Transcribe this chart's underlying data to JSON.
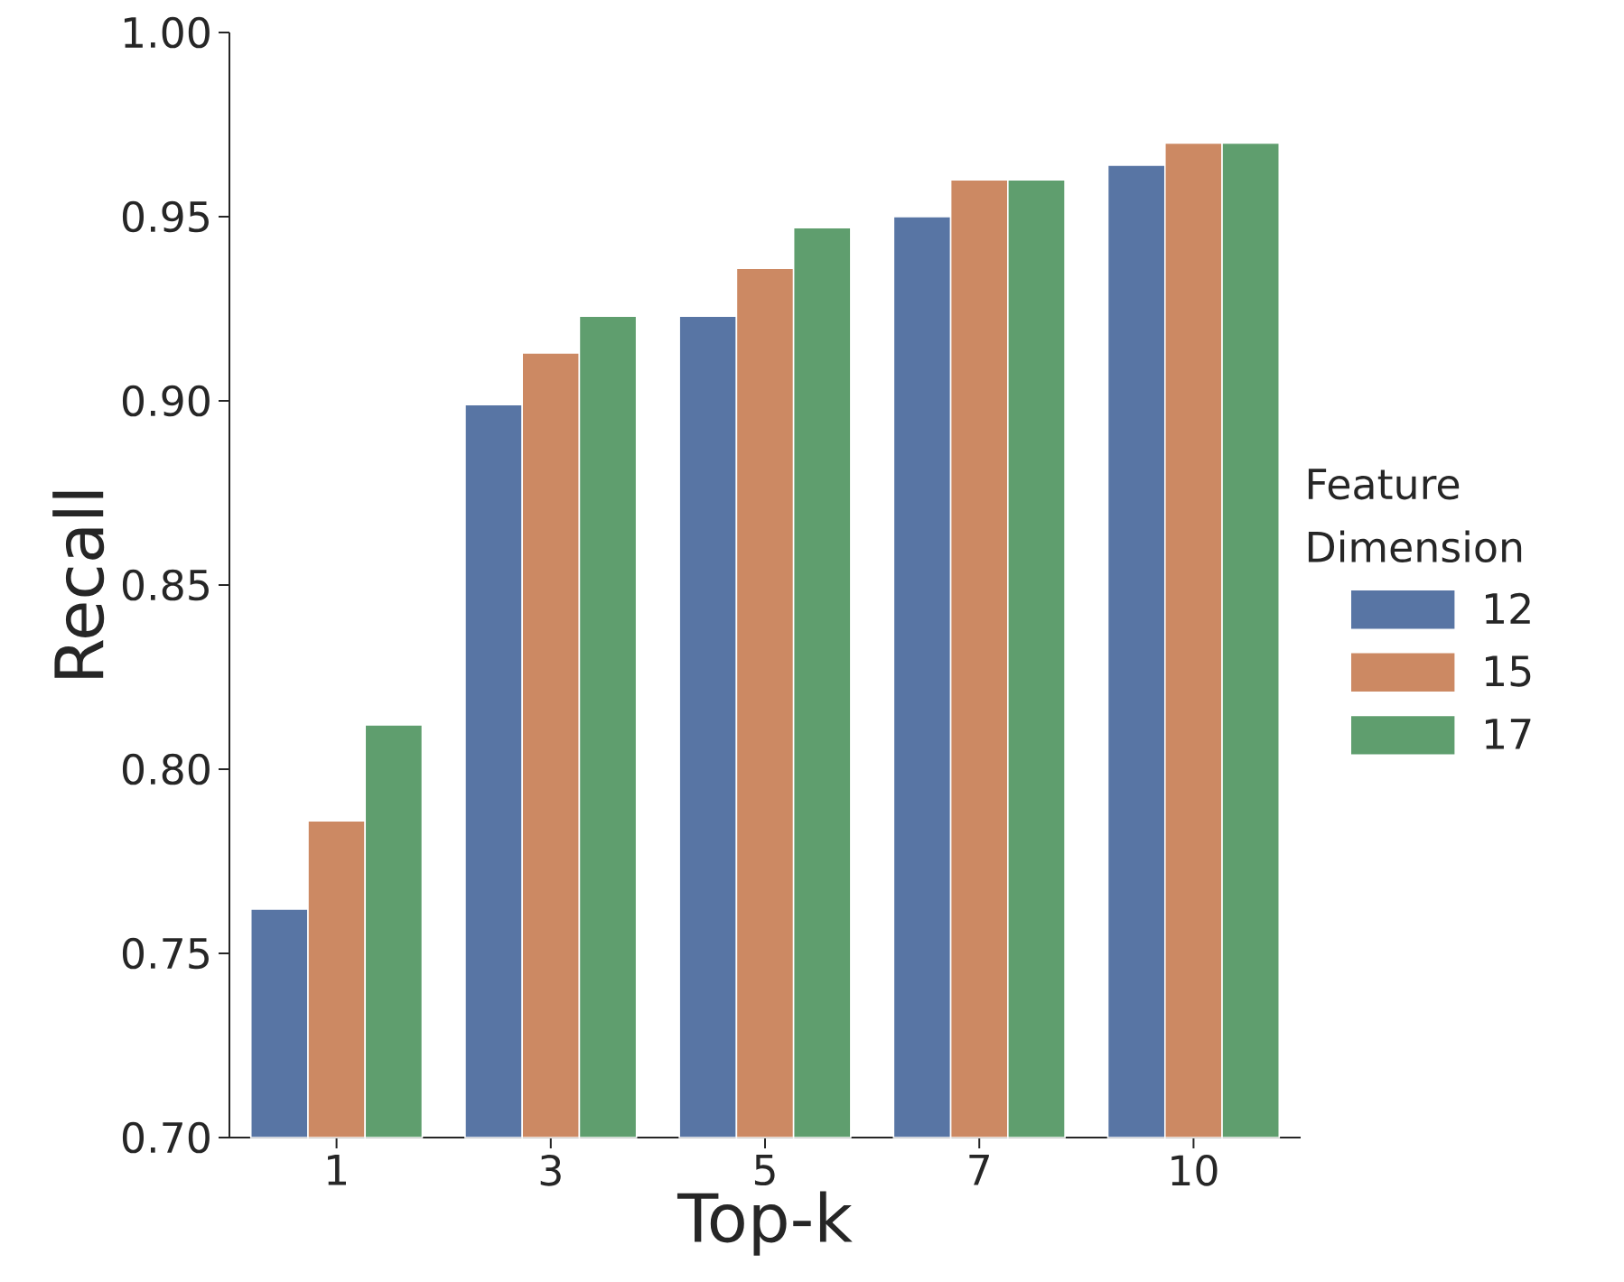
{
  "chart_data": {
    "type": "bar",
    "xlabel": "Top-k",
    "ylabel": "Recall",
    "legend_title": "Feature Dimension",
    "legend": "right",
    "categories": [
      "1",
      "3",
      "5",
      "7",
      "10"
    ],
    "series": [
      {
        "name": "12",
        "color": "#5875a4",
        "values": [
          0.762,
          0.899,
          0.923,
          0.95,
          0.964
        ]
      },
      {
        "name": "15",
        "color": "#cc8963",
        "values": [
          0.786,
          0.913,
          0.936,
          0.96,
          0.97
        ]
      },
      {
        "name": "17",
        "color": "#5f9e6e",
        "values": [
          0.812,
          0.923,
          0.947,
          0.96,
          0.97
        ]
      }
    ],
    "ylim": [
      0.7,
      1.0
    ],
    "yticks": [
      {
        "value": 0.7,
        "label": "0.70"
      },
      {
        "value": 0.75,
        "label": "0.75"
      },
      {
        "value": 0.8,
        "label": "0.80"
      },
      {
        "value": 0.85,
        "label": "0.85"
      },
      {
        "value": 0.9,
        "label": "0.90"
      },
      {
        "value": 0.95,
        "label": "0.95"
      },
      {
        "value": 1.0,
        "label": "1.00"
      }
    ]
  }
}
